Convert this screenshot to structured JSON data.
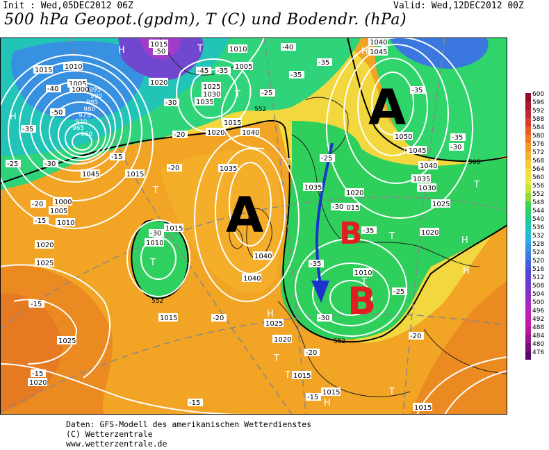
{
  "header": {
    "init": "Init : Wed,05DEC2012 06Z",
    "valid": "Valid: Wed,12DEC2012 00Z",
    "title": "500 hPa Geopot.(gpdm), T (C) und Bodendr. (hPa)"
  },
  "map_labels": {
    "high_big_1": "A",
    "high_big_2": "A",
    "low_big_1": "B",
    "low_big_2": "B",
    "small_h": "H",
    "small_t": "T"
  },
  "isobars": [
    "1015",
    "1010",
    "1005",
    "1000",
    "995",
    "990",
    "985",
    "980",
    "975",
    "970",
    "965",
    "960",
    "1020",
    "1025",
    "1030",
    "1035",
    "1040",
    "1045",
    "1050"
  ],
  "temperatures": [
    "-15",
    "-20",
    "-25",
    "-30",
    "-35",
    "-40",
    "-45",
    "-50"
  ],
  "geopot_lines": [
    "552",
    "568"
  ],
  "colors": {
    "low_red": "#e02020",
    "arrow_blue": "#1a33cc",
    "green": "#2dd36a",
    "yellow": "#f0e040",
    "orange": "#f2a020"
  },
  "scale": {
    "values": [
      "600",
      "596",
      "592",
      "588",
      "584",
      "580",
      "576",
      "572",
      "568",
      "564",
      "560",
      "556",
      "552",
      "548",
      "544",
      "540",
      "536",
      "532",
      "528",
      "524",
      "520",
      "516",
      "512",
      "508",
      "504",
      "500",
      "496",
      "492",
      "488",
      "484",
      "480",
      "476"
    ],
    "colors": [
      "#8b1028",
      "#a81830",
      "#c02838",
      "#d83c30",
      "#e85a28",
      "#ee7a22",
      "#f29a24",
      "#f5b030",
      "#f6c83c",
      "#f4dc40",
      "#e8e840",
      "#c8e43c",
      "#90da3a",
      "#40d050",
      "#2acc74",
      "#20c8a0",
      "#20c4c4",
      "#28b4dc",
      "#3498e0",
      "#3c7ce0",
      "#4460dc",
      "#5048d8",
      "#6040d0",
      "#7838cc",
      "#9030c8",
      "#a828c0",
      "#bc20b8",
      "#c818a8",
      "#b81898",
      "#981488",
      "#781078",
      "#580868"
    ]
  },
  "footer": {
    "line1": "Daten: GFS-Modell des amerikanischen Wetterdienstes",
    "line2": "(C) Wetterzentrale",
    "line3": "www.wetterzentrale.de"
  }
}
